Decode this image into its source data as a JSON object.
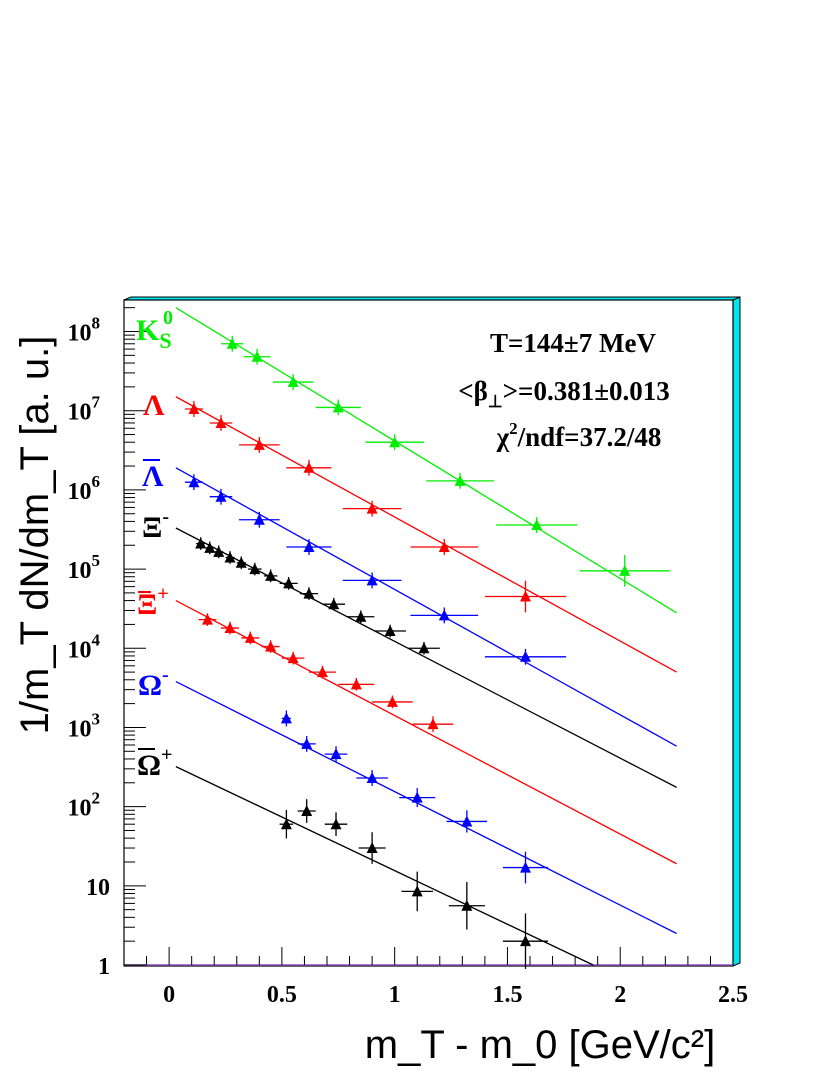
{
  "chart_data": {
    "type": "scatter",
    "xlabel": "m_T - m_0   [GeV/c²]",
    "ylabel": "1/m_T dN/dm_T  [a. u.]",
    "xlim": [
      -0.2,
      2.5
    ],
    "ylim": [
      1,
      250000000
    ],
    "yscale": "log",
    "grid": false,
    "x_ticks": [
      "0",
      "0.5",
      "1",
      "1.5",
      "2",
      "2.5"
    ],
    "y_ticks": [
      {
        "value": 1,
        "base": "1",
        "exp": ""
      },
      {
        "value": 10,
        "base": "10",
        "exp": ""
      },
      {
        "value": 100,
        "base": "10",
        "exp": "2"
      },
      {
        "value": 1000,
        "base": "10",
        "exp": "3"
      },
      {
        "value": 10000,
        "base": "10",
        "exp": "4"
      },
      {
        "value": 100000,
        "base": "10",
        "exp": "5"
      },
      {
        "value": 1000000,
        "base": "10",
        "exp": "6"
      },
      {
        "value": 10000000,
        "base": "10",
        "exp": "7"
      },
      {
        "value": 100000000,
        "base": "10",
        "exp": "8"
      }
    ],
    "annotations": {
      "temperature": "T=144±7 MeV",
      "beta_prefix": "<β",
      "beta_sub": "⊥",
      "beta_suffix": ">=0.381±0.013",
      "chi_prefix": "χ",
      "chi_sup": "2",
      "chi_suffix": "/ndf=37.2/48"
    },
    "series": [
      {
        "label_main": "K",
        "label_sub": "S",
        "label_sup": "0",
        "bar": false,
        "color": "#00ee00",
        "fit": [
          [
            0.03,
            200000000
          ],
          [
            2.25,
            28000
          ]
        ],
        "points": [
          {
            "x": 0.28,
            "y": 70000000,
            "ex": 0.05,
            "ey": 0.1
          },
          {
            "x": 0.39,
            "y": 48000000,
            "ex": 0.06,
            "ey": 0.1
          },
          {
            "x": 0.55,
            "y": 23000000,
            "ex": 0.09,
            "ey": 0.1
          },
          {
            "x": 0.75,
            "y": 11000000,
            "ex": 0.1,
            "ey": 0.1
          },
          {
            "x": 1.0,
            "y": 4000000,
            "ex": 0.13,
            "ey": 0.1
          },
          {
            "x": 1.29,
            "y": 1300000,
            "ex": 0.15,
            "ey": 0.1
          },
          {
            "x": 1.63,
            "y": 360000,
            "ex": 0.18,
            "ey": 0.1
          },
          {
            "x": 2.02,
            "y": 95000,
            "ex": 0.2,
            "ey": 0.2
          }
        ]
      },
      {
        "label_main": "Λ",
        "label_sub": "",
        "label_sup": "",
        "bar": false,
        "color": "#ff0000",
        "fit": [
          [
            0.03,
            15000000
          ],
          [
            2.25,
            5000
          ]
        ],
        "points": [
          {
            "x": 0.11,
            "y": 10500000,
            "ex": 0.04,
            "ey": 0.1
          },
          {
            "x": 0.23,
            "y": 7000000,
            "ex": 0.05,
            "ey": 0.1
          },
          {
            "x": 0.4,
            "y": 3700000,
            "ex": 0.09,
            "ey": 0.1
          },
          {
            "x": 0.62,
            "y": 1900000,
            "ex": 0.1,
            "ey": 0.1
          },
          {
            "x": 0.9,
            "y": 580000,
            "ex": 0.13,
            "ey": 0.1
          },
          {
            "x": 1.22,
            "y": 190000,
            "ex": 0.15,
            "ey": 0.1
          },
          {
            "x": 1.58,
            "y": 45000,
            "ex": 0.18,
            "ey": 0.2
          }
        ]
      },
      {
        "label_main": "Λ",
        "label_sub": "",
        "label_sup": "",
        "bar": true,
        "color": "#0000ff",
        "fit": [
          [
            0.03,
            1900000
          ],
          [
            2.25,
            580
          ]
        ],
        "points": [
          {
            "x": 0.11,
            "y": 1250000,
            "ex": 0.04,
            "ey": 0.1
          },
          {
            "x": 0.23,
            "y": 820000,
            "ex": 0.05,
            "ey": 0.1
          },
          {
            "x": 0.4,
            "y": 420000,
            "ex": 0.09,
            "ey": 0.1
          },
          {
            "x": 0.62,
            "y": 190000,
            "ex": 0.1,
            "ey": 0.1
          },
          {
            "x": 0.9,
            "y": 72000,
            "ex": 0.13,
            "ey": 0.1
          },
          {
            "x": 1.22,
            "y": 26000,
            "ex": 0.15,
            "ey": 0.1
          },
          {
            "x": 1.58,
            "y": 7800,
            "ex": 0.18,
            "ey": 0.1
          }
        ]
      },
      {
        "label_main": "Ξ",
        "label_sub": "",
        "label_sup": "-",
        "bar": false,
        "color": "#000000",
        "fit": [
          [
            0.03,
            330000
          ],
          [
            2.25,
            175
          ]
        ],
        "points": [
          {
            "x": 0.14,
            "y": 210000,
            "ex": 0.02,
            "ey": 0.08
          },
          {
            "x": 0.18,
            "y": 185000,
            "ex": 0.02,
            "ey": 0.08
          },
          {
            "x": 0.22,
            "y": 165000,
            "ex": 0.02,
            "ey": 0.08
          },
          {
            "x": 0.27,
            "y": 140000,
            "ex": 0.02,
            "ey": 0.08
          },
          {
            "x": 0.32,
            "y": 120000,
            "ex": 0.02,
            "ey": 0.08
          },
          {
            "x": 0.38,
            "y": 100000,
            "ex": 0.03,
            "ey": 0.08
          },
          {
            "x": 0.45,
            "y": 82000,
            "ex": 0.03,
            "ey": 0.08
          },
          {
            "x": 0.53,
            "y": 66000,
            "ex": 0.04,
            "ey": 0.08
          },
          {
            "x": 0.62,
            "y": 49000,
            "ex": 0.04,
            "ey": 0.08
          },
          {
            "x": 0.73,
            "y": 36000,
            "ex": 0.05,
            "ey": 0.08
          },
          {
            "x": 0.85,
            "y": 25000,
            "ex": 0.06,
            "ey": 0.08
          },
          {
            "x": 0.98,
            "y": 16500,
            "ex": 0.07,
            "ey": 0.08
          },
          {
            "x": 1.13,
            "y": 10000,
            "ex": 0.07,
            "ey": 0.08
          }
        ]
      },
      {
        "label_main": "Ξ",
        "label_sub": "",
        "label_sup": "+",
        "bar": true,
        "color": "#ff0000",
        "fit": [
          [
            0.03,
            40000
          ],
          [
            2.25,
            19
          ]
        ],
        "points": [
          {
            "x": 0.17,
            "y": 23000,
            "ex": 0.04,
            "ey": 0.08
          },
          {
            "x": 0.27,
            "y": 18000,
            "ex": 0.04,
            "ey": 0.08
          },
          {
            "x": 0.36,
            "y": 13500,
            "ex": 0.04,
            "ey": 0.08
          },
          {
            "x": 0.45,
            "y": 10500,
            "ex": 0.04,
            "ey": 0.08
          },
          {
            "x": 0.55,
            "y": 7500,
            "ex": 0.05,
            "ey": 0.08
          },
          {
            "x": 0.68,
            "y": 5000,
            "ex": 0.06,
            "ey": 0.08
          },
          {
            "x": 0.83,
            "y": 3500,
            "ex": 0.08,
            "ey": 0.08
          },
          {
            "x": 0.99,
            "y": 2100,
            "ex": 0.09,
            "ey": 0.08
          },
          {
            "x": 1.17,
            "y": 1100,
            "ex": 0.09,
            "ey": 0.1
          }
        ]
      },
      {
        "label_main": "Ω",
        "label_sub": "",
        "label_sup": "-",
        "bar": false,
        "color": "#0000ff",
        "fit": [
          [
            0.03,
            3800
          ],
          [
            2.25,
            2.5
          ]
        ],
        "points": [
          {
            "x": 0.52,
            "y": 1300,
            "ex": 0.02,
            "ey": 0.1
          },
          {
            "x": 0.61,
            "y": 620,
            "ex": 0.04,
            "ey": 0.1
          },
          {
            "x": 0.74,
            "y": 460,
            "ex": 0.05,
            "ey": 0.1
          },
          {
            "x": 0.9,
            "y": 230,
            "ex": 0.07,
            "ey": 0.1
          },
          {
            "x": 1.1,
            "y": 130,
            "ex": 0.08,
            "ey": 0.12
          },
          {
            "x": 1.32,
            "y": 65,
            "ex": 0.09,
            "ey": 0.14
          },
          {
            "x": 1.58,
            "y": 17,
            "ex": 0.1,
            "ey": 0.2
          }
        ]
      },
      {
        "label_main": "Ω",
        "label_sub": "",
        "label_sup": "+",
        "bar": true,
        "color": "#000000",
        "fit": [
          [
            0.03,
            320
          ],
          [
            1.88,
            1
          ]
        ],
        "points": [
          {
            "x": 0.52,
            "y": 60,
            "ex": 0.03,
            "ey": 0.18
          },
          {
            "x": 0.61,
            "y": 88,
            "ex": 0.04,
            "ey": 0.15
          },
          {
            "x": 0.74,
            "y": 60,
            "ex": 0.05,
            "ey": 0.15
          },
          {
            "x": 0.9,
            "y": 30,
            "ex": 0.06,
            "ey": 0.2
          },
          {
            "x": 1.1,
            "y": 8.5,
            "ex": 0.07,
            "ey": 0.25
          },
          {
            "x": 1.32,
            "y": 5.6,
            "ex": 0.08,
            "ey": 0.3
          },
          {
            "x": 1.58,
            "y": 2.0,
            "ex": 0.1,
            "ey": 0.35
          }
        ]
      }
    ]
  }
}
